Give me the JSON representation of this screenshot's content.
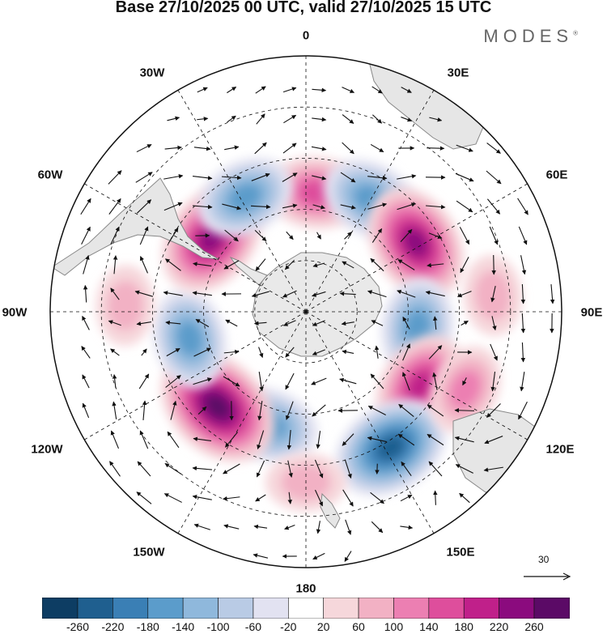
{
  "title": "Base 27/10/2025 00 UTC, valid 27/10/2025 15 UTC",
  "brand": "MODES",
  "brand_mark": "®",
  "longitude_labels": {
    "top": "0",
    "e30": "30E",
    "e60": "60E",
    "e90": "90E",
    "e120": "120E",
    "e150": "150E",
    "bottom": "180",
    "w150": "150W",
    "w120": "120W",
    "w90": "90W",
    "w60": "60W",
    "w30": "30W"
  },
  "reference_vector": {
    "label": "30",
    "magnitude": 30
  },
  "colorbar": {
    "ticks": [
      "-260",
      "-220",
      "-180",
      "-140",
      "-100",
      "-60",
      "-20",
      "20",
      "60",
      "100",
      "140",
      "180",
      "220",
      "260"
    ],
    "colors": [
      "#0d3d63",
      "#1f5f8f",
      "#3a7fb5",
      "#5b9ccb",
      "#8fb8dc",
      "#b9cbe5",
      "#e2e2f1",
      "#ffffff",
      "#f6d7db",
      "#f2b1c4",
      "#ec7fb2",
      "#de4e9c",
      "#c0208a",
      "#8b0b7e",
      "#5b0a66"
    ]
  },
  "anomalies": [
    {
      "name": "positive-anomaly-0e",
      "value": 160,
      "lon": 5,
      "lat": -55
    },
    {
      "name": "negative-anomaly-40e",
      "value": -160,
      "lon": 30,
      "lat": -52
    },
    {
      "name": "positive-anomaly-60e",
      "value": 240,
      "lon": 58,
      "lat": -52
    },
    {
      "name": "negative-anomaly-95e",
      "value": -170,
      "lon": 98,
      "lat": -57
    },
    {
      "name": "positive-anomaly-120e",
      "value": 180,
      "lon": 123,
      "lat": -50
    },
    {
      "name": "negative-anomaly-150e",
      "value": -220,
      "lon": 148,
      "lat": -43
    },
    {
      "name": "positive-anomaly-118e",
      "value": 100,
      "lon": 116,
      "lat": -38
    },
    {
      "name": "negative-anomaly-160w",
      "value": -150,
      "lon": -162,
      "lat": -55
    },
    {
      "name": "positive-anomaly-140w",
      "value": 260,
      "lon": -137,
      "lat": -52
    },
    {
      "name": "negative-anomaly-105w",
      "value": -160,
      "lon": -103,
      "lat": -55
    },
    {
      "name": "positive-anomaly-55w",
      "value": 240,
      "lon": -52,
      "lat": -55
    },
    {
      "name": "negative-anomaly-30w",
      "value": -160,
      "lon": -28,
      "lat": -52
    },
    {
      "name": "positive-anomaly-180",
      "value": 60,
      "lon": 180,
      "lat": -40
    },
    {
      "name": "positive-anomaly-90w",
      "value": 80,
      "lon": -88,
      "lat": -37
    },
    {
      "name": "positive-anomaly-85e",
      "value": 60,
      "lon": 85,
      "lat": -35
    }
  ]
}
